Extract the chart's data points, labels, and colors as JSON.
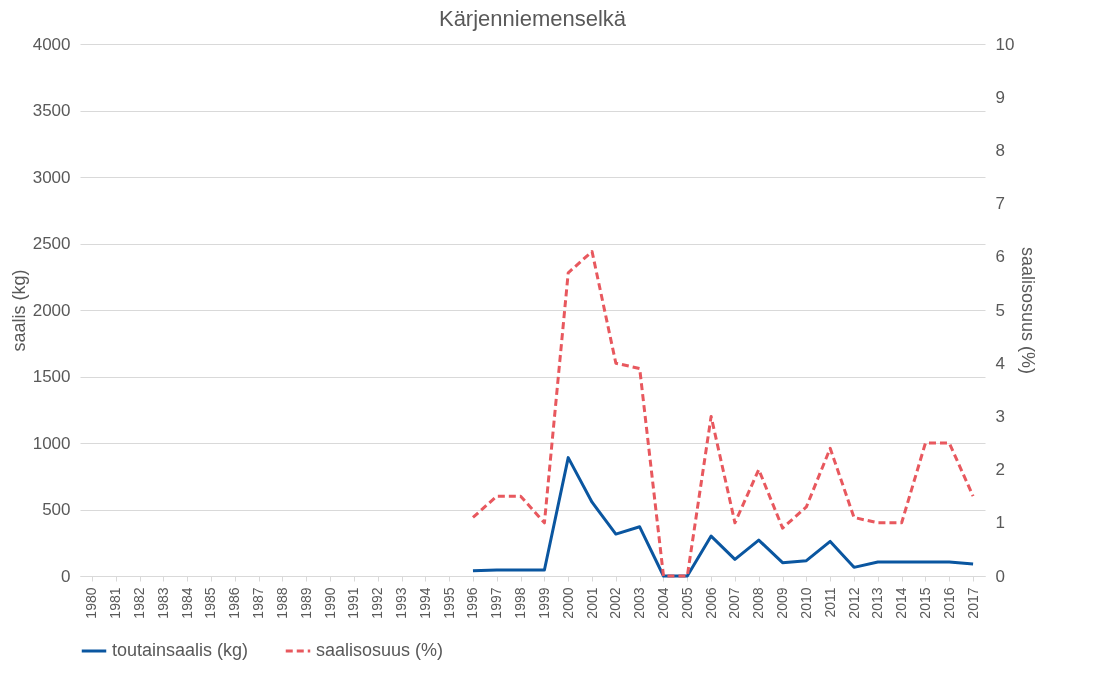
{
  "chart_data": {
    "type": "line",
    "title": "Kärjenniemenselkä",
    "ylabel": "saalis (kg)",
    "y2label": "saalisosuus (%)",
    "categories": [
      "1980",
      "1981",
      "1982",
      "1983",
      "1984",
      "1985",
      "1986",
      "1987",
      "1988",
      "1989",
      "1990",
      "1991",
      "1992",
      "1993",
      "1994",
      "1995",
      "1996",
      "1997",
      "1998",
      "1999",
      "2000",
      "2001",
      "2002",
      "2003",
      "2004",
      "2005",
      "2006",
      "2007",
      "2008",
      "2009",
      "2010",
      "2011",
      "2012",
      "2013",
      "2014",
      "2015",
      "2016",
      "2017"
    ],
    "series": [
      {
        "name": "toutainsaalis (kg)",
        "color": "#0a56a0",
        "line_style": "solid",
        "values": [
          null,
          null,
          null,
          null,
          null,
          null,
          null,
          null,
          null,
          null,
          null,
          null,
          null,
          null,
          null,
          null,
          40,
          45,
          45,
          45,
          890,
          555,
          315,
          370,
          0,
          0,
          300,
          125,
          270,
          100,
          115,
          260,
          65,
          105,
          105,
          105,
          105,
          90
        ]
      },
      {
        "name": "saalisosuus (%)",
        "color": "#e8585e",
        "line_style": "dashed",
        "axis": "y2",
        "values": [
          null,
          null,
          null,
          null,
          null,
          null,
          null,
          null,
          null,
          null,
          null,
          null,
          null,
          null,
          null,
          null,
          1.1,
          1.5,
          1.5,
          1.0,
          5.7,
          6.1,
          4.0,
          3.9,
          0,
          0,
          3.0,
          1.0,
          2.0,
          0.9,
          1.3,
          2.4,
          1.1,
          1.0,
          1.0,
          2.5,
          2.5,
          1.5
        ]
      }
    ],
    "ylim": [
      0,
      4000
    ],
    "yticks": [
      0,
      500,
      1000,
      1500,
      2000,
      2500,
      3000,
      3500,
      4000
    ],
    "y2lim": [
      0,
      10
    ],
    "y2ticks": [
      0,
      1,
      2,
      3,
      4,
      5,
      6,
      7,
      8,
      9,
      10
    ],
    "grid": "y",
    "legend": "bottom"
  }
}
